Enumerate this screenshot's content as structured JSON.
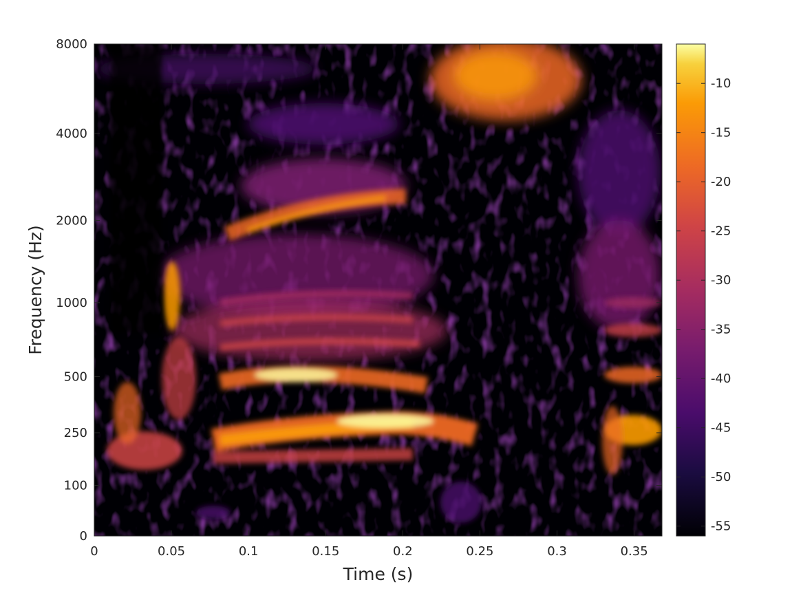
{
  "chart_data": {
    "type": "heatmap",
    "subtype": "spectrogram",
    "title": "",
    "xlabel": "Time (s)",
    "ylabel": "Frequency (Hz)",
    "xlim": [
      0,
      0.368
    ],
    "x_ticks": [
      0,
      0.05,
      0.1,
      0.15,
      0.2,
      0.25,
      0.3,
      0.35
    ],
    "x_tick_labels": [
      "0",
      "0.05",
      "0.1",
      "0.15",
      "0.2",
      "0.25",
      "0.3",
      "0.35"
    ],
    "y_ticks": [
      0,
      100,
      250,
      500,
      1000,
      2000,
      4000,
      8000
    ],
    "y_tick_labels": [
      "0",
      "100",
      "250",
      "500",
      "1000",
      "2000",
      "4000",
      "8000"
    ],
    "y_scale": "warped (non-linear, near-logarithmic)",
    "colormap": "inferno",
    "colorbar": {
      "range": [
        -56,
        -6
      ],
      "ticks": [
        -10,
        -15,
        -20,
        -25,
        -30,
        -35,
        -40,
        -45,
        -50,
        -55
      ],
      "tick_labels": [
        "-10",
        "-15",
        "-20",
        "-25",
        "-30",
        "-35",
        "-40",
        "-45",
        "-50",
        "-55"
      ]
    },
    "grid": false,
    "segments": [
      {
        "t_start": 0.0,
        "t_end": 0.045,
        "description": "weak low-frequency energy around 150-300 Hz"
      },
      {
        "t_start": 0.045,
        "t_end": 0.075,
        "description": "burst with energy near 1000 Hz"
      },
      {
        "t_start": 0.075,
        "t_end": 0.225,
        "description": "voiced segment with harmonics; strongest bands near 250-300 Hz and 500 Hz, formant near 2500 Hz"
      },
      {
        "t_start": 0.215,
        "t_end": 0.325,
        "description": "high-frequency frication energy 4000-8000 Hz"
      },
      {
        "t_start": 0.328,
        "t_end": 0.368,
        "description": "voiced onset with harmonics 250-2000 Hz"
      }
    ]
  }
}
